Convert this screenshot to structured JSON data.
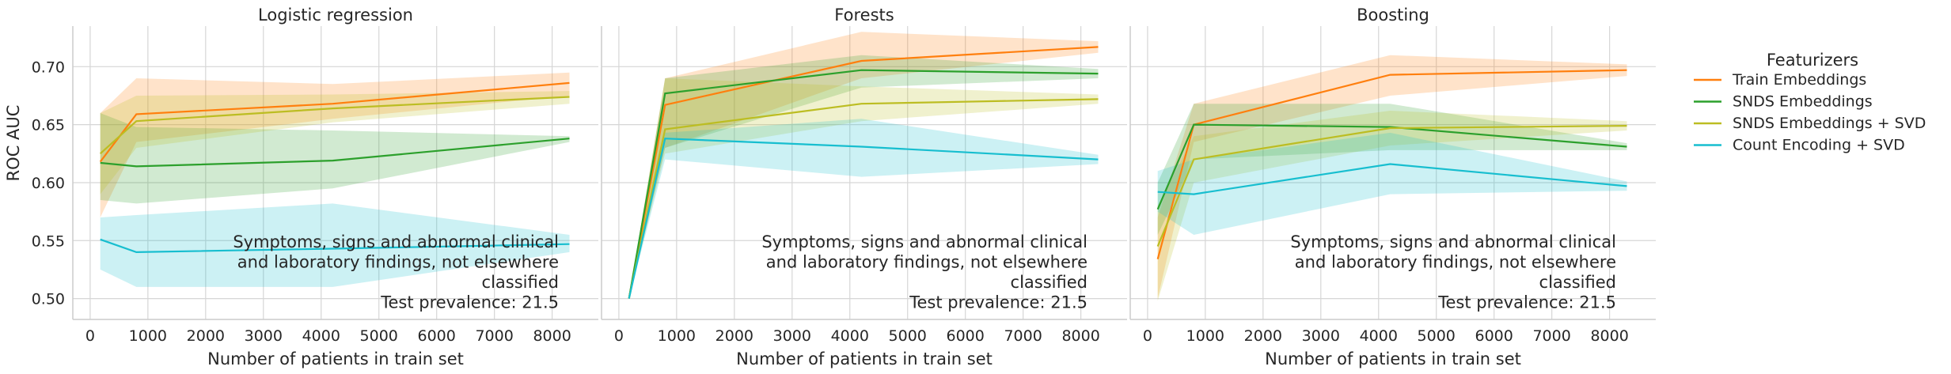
{
  "figure": {
    "ylabel": "ROC AUC",
    "xlabel": "Number of patients in train set",
    "legend": {
      "title": "Featurizers",
      "entries": [
        "Train Embeddings",
        "SNDS Embeddings",
        "SNDS Embeddings + SVD",
        "Count Encoding + SVD"
      ]
    }
  },
  "colors": {
    "Train Embeddings": "#ff7f0e",
    "SNDS Embeddings": "#2ca02c",
    "SNDS Embeddings + SVD": "#bcbd22",
    "Count Encoding + SVD": "#17becf"
  },
  "chart_data": [
    {
      "type": "line",
      "title": "Logistic regression",
      "xlabel": "Number of patients in train set",
      "ylabel": "ROC AUC",
      "x": [
        175,
        800,
        4200,
        8300
      ],
      "xlim": [
        -300,
        8800
      ],
      "ylim": [
        0.482,
        0.735
      ],
      "xticks": [
        0,
        1000,
        2000,
        3000,
        4000,
        5000,
        6000,
        7000,
        8000
      ],
      "yticks": [
        0.5,
        0.55,
        0.6,
        0.65,
        0.7
      ],
      "grid": true,
      "annotation": [
        "Symptoms, signs and abnormal clinical",
        "and laboratory findings, not elsewhere",
        "classified",
        "Test prevalence: 21.5"
      ],
      "series": [
        {
          "name": "Train Embeddings",
          "values": [
            0.618,
            0.659,
            0.668,
            0.686
          ],
          "lower": [
            0.57,
            0.635,
            0.655,
            0.675
          ],
          "upper": [
            0.66,
            0.69,
            0.685,
            0.695
          ]
        },
        {
          "name": "SNDS Embeddings",
          "values": [
            0.617,
            0.614,
            0.619,
            0.638
          ],
          "lower": [
            0.585,
            0.582,
            0.595,
            0.635
          ],
          "upper": [
            0.66,
            0.648,
            0.645,
            0.64
          ]
        },
        {
          "name": "SNDS Embeddings + SVD",
          "values": [
            0.625,
            0.653,
            0.664,
            0.674
          ],
          "lower": [
            0.59,
            0.63,
            0.652,
            0.668
          ],
          "upper": [
            0.66,
            0.675,
            0.676,
            0.679
          ]
        },
        {
          "name": "Count Encoding + SVD",
          "values": [
            0.551,
            0.54,
            0.543,
            0.547
          ],
          "lower": [
            0.525,
            0.51,
            0.51,
            0.54
          ],
          "upper": [
            0.57,
            0.572,
            0.582,
            0.555
          ]
        }
      ]
    },
    {
      "type": "line",
      "title": "Forests",
      "xlabel": "Number of patients in train set",
      "ylabel": "ROC AUC",
      "x": [
        175,
        800,
        4200,
        8300
      ],
      "xlim": [
        -300,
        8800
      ],
      "ylim": [
        0.482,
        0.735
      ],
      "xticks": [
        0,
        1000,
        2000,
        3000,
        4000,
        5000,
        6000,
        7000,
        8000
      ],
      "yticks": [
        0.5,
        0.55,
        0.6,
        0.65,
        0.7
      ],
      "grid": true,
      "annotation": [
        "Symptoms, signs and abnormal clinical",
        "and laboratory findings, not elsewhere",
        "classified",
        "Test prevalence: 21.5"
      ],
      "series": [
        {
          "name": "Train Embeddings",
          "values": [
            0.5,
            0.667,
            0.705,
            0.717
          ],
          "lower": [
            0.5,
            0.63,
            0.69,
            0.712
          ],
          "upper": [
            0.5,
            0.69,
            0.73,
            0.722
          ]
        },
        {
          "name": "SNDS Embeddings",
          "values": [
            0.5,
            0.677,
            0.697,
            0.694
          ],
          "lower": [
            0.5,
            0.63,
            0.682,
            0.69
          ],
          "upper": [
            0.5,
            0.69,
            0.71,
            0.698
          ]
        },
        {
          "name": "SNDS Embeddings + SVD",
          "values": [
            0.5,
            0.646,
            0.668,
            0.672
          ],
          "lower": [
            0.5,
            0.625,
            0.653,
            0.668
          ],
          "upper": [
            0.5,
            0.69,
            0.683,
            0.676
          ]
        },
        {
          "name": "Count Encoding + SVD",
          "values": [
            0.5,
            0.638,
            0.631,
            0.62
          ],
          "lower": [
            0.5,
            0.62,
            0.605,
            0.616
          ],
          "upper": [
            0.5,
            0.643,
            0.655,
            0.624
          ]
        }
      ]
    },
    {
      "type": "line",
      "title": "Boosting",
      "xlabel": "Number of patients in train set",
      "ylabel": "ROC AUC",
      "x": [
        175,
        800,
        4200,
        8300
      ],
      "xlim": [
        -300,
        8800
      ],
      "ylim": [
        0.482,
        0.735
      ],
      "xticks": [
        0,
        1000,
        2000,
        3000,
        4000,
        5000,
        6000,
        7000,
        8000
      ],
      "yticks": [
        0.5,
        0.55,
        0.6,
        0.65,
        0.7
      ],
      "grid": true,
      "annotation": [
        "Symptoms, signs and abnormal clinical",
        "and laboratory findings, not elsewhere",
        "classified",
        "Test prevalence: 21.5"
      ],
      "series": [
        {
          "name": "Train Embeddings",
          "values": [
            0.534,
            0.65,
            0.693,
            0.697
          ],
          "lower": [
            0.5,
            0.635,
            0.675,
            0.692
          ],
          "upper": [
            0.57,
            0.668,
            0.71,
            0.702
          ]
        },
        {
          "name": "SNDS Embeddings",
          "values": [
            0.577,
            0.65,
            0.648,
            0.631
          ],
          "lower": [
            0.555,
            0.62,
            0.628,
            0.628
          ],
          "upper": [
            0.6,
            0.668,
            0.668,
            0.634
          ]
        },
        {
          "name": "SNDS Embeddings + SVD",
          "values": [
            0.545,
            0.62,
            0.647,
            0.649
          ],
          "lower": [
            0.498,
            0.6,
            0.632,
            0.645
          ],
          "upper": [
            0.58,
            0.64,
            0.662,
            0.653
          ]
        },
        {
          "name": "Count Encoding + SVD",
          "values": [
            0.592,
            0.59,
            0.616,
            0.597
          ],
          "lower": [
            0.575,
            0.555,
            0.59,
            0.593
          ],
          "upper": [
            0.61,
            0.62,
            0.643,
            0.601
          ]
        }
      ]
    }
  ]
}
